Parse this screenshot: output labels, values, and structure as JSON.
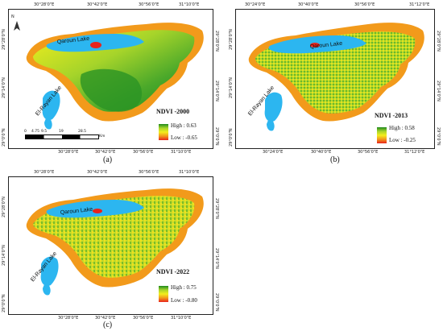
{
  "panels": [
    {
      "caption": "(a)",
      "ndvi_title": "NDVI -2000",
      "legend_high": "High : 0.63",
      "legend_low": "Low : -0.65",
      "top_coords": [
        "30°28'0\"E",
        "30°42'0\"E",
        "30°56'0\"E",
        "31°10'0\"E"
      ],
      "bottom_coords": [
        "30°28'0\"E",
        "30°42'0\"E",
        "30°56'0\"E",
        "31°10'0\"E"
      ],
      "left_coords": [
        "29°28'0\"N",
        "29°14'0\"N",
        "29°0'0\"N"
      ],
      "right_coords": [
        "29°28'0\"N",
        "29°14'0\"N",
        "29°0'0\"N"
      ],
      "scale_labels": [
        "0",
        "4.75",
        "9.5",
        "19",
        "28.5",
        "Km"
      ],
      "north_label": "N"
    },
    {
      "caption": "(b)",
      "ndvi_title": "NDVI -2013",
      "legend_high": "High : 0.58",
      "legend_low": "Low : -0.25",
      "top_coords": [
        "30°24'0\"E",
        "30°40'0\"E",
        "30°56'0\"E",
        "31°12'0\"E"
      ],
      "bottom_coords": [
        "30°24'0\"E",
        "30°40'0\"E",
        "30°56'0\"E",
        "31°12'0\"E"
      ],
      "left_coords": [
        "29°28'0\"N",
        "29°14'0\"N",
        "29°0'0\"N"
      ],
      "right_coords": [
        "29°28'0\"N",
        "29°14'0\"N",
        "29°0'0\"N"
      ]
    },
    {
      "caption": "(c)",
      "ndvi_title": "NDVI -2022",
      "legend_high": "High : 0.75",
      "legend_low": "Low : -0.80",
      "top_coords": [
        "30°28'0\"E",
        "30°42'0\"E",
        "30°56'0\"E",
        "31°10'0\"E"
      ],
      "bottom_coords": [
        "30°28'0\"E",
        "30°42'0\"E",
        "30°56'0\"E",
        "31°10'0\"E"
      ],
      "left_coords": [
        "29°28'0\"N",
        "29°14'0\"N",
        "29°0'0\"N"
      ],
      "right_coords": [
        "29°28'0\"N",
        "29°14'0\"N",
        "29°0'0\"N"
      ]
    }
  ],
  "lakes": {
    "qaroun": "Qaroun Lake",
    "elrayan": "El-Rayan Lake"
  },
  "colors": {
    "high": "#1e8a1e",
    "mid": "#f3ee1d",
    "low": "#e8231c",
    "water": "#2cb6f0",
    "orange": "#f29a1b"
  }
}
